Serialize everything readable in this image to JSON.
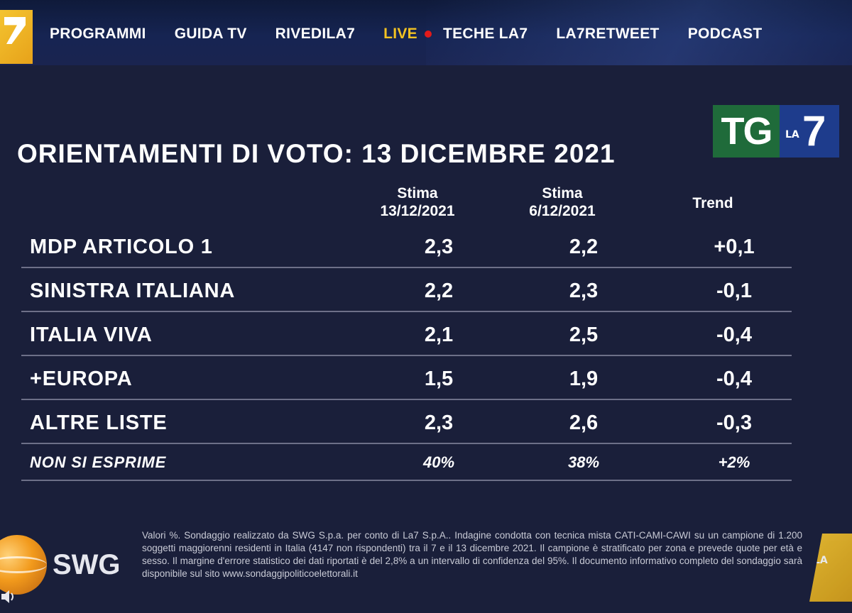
{
  "nav": {
    "items": [
      "PROGRAMMI",
      "GUIDA TV",
      "RIVEDILA7"
    ],
    "live_label": "LIVE",
    "items_after": [
      "TECHE LA7",
      "LA7RETWEET",
      "PODCAST"
    ]
  },
  "logo": {
    "tg": "TG",
    "la": "LA",
    "seven": "7"
  },
  "title": "ORIENTAMENTI DI VOTO: 13 DICEMBRE 2021",
  "table": {
    "columns": [
      {
        "line1": "Stima",
        "line2": "13/12/2021"
      },
      {
        "line1": "Stima",
        "line2": "6/12/2021"
      },
      {
        "line1": "Trend",
        "line2": ""
      }
    ],
    "rows": [
      {
        "name": "MDP ARTICOLO 1",
        "v1": "2,3",
        "v2": "2,2",
        "trend": "+0,1"
      },
      {
        "name": "SINISTRA ITALIANA",
        "v1": "2,2",
        "v2": "2,3",
        "trend": "-0,1"
      },
      {
        "name": "ITALIA VIVA",
        "v1": "2,1",
        "v2": "2,5",
        "trend": "-0,4"
      },
      {
        "name": "+EUROPA",
        "v1": "1,5",
        "v2": "1,9",
        "trend": "-0,4"
      },
      {
        "name": "ALTRE LISTE",
        "v1": "2,3",
        "v2": "2,6",
        "trend": "-0,3"
      }
    ],
    "footer_row": {
      "name": "NON SI ESPRIME",
      "v1": "40%",
      "v2": "38%",
      "trend": "+2%"
    }
  },
  "footer": {
    "note": "Valori %. Sondaggio realizzato da SWG S.p.a. per conto di La7 S.p.A.. Indagine condotta con tecnica mista CATI-CAMI-CAWI su un campione di 1.200 soggetti maggiorenni residenti in Italia (4147 non rispondenti) tra il 7 e il 13 dicembre 2021. Il campione è stratificato per zona e prevede quote per età e sesso. Il margine d'errore statistico dei dati riportati è del 2,8% a un intervallo di confidenza del 95%. Il documento informativo completo del sondaggio sarà disponibile sul sito www.sondaggipoliticoelettorali.it",
    "swg_logo": "SWG",
    "corner_text": "LA"
  },
  "colors": {
    "background": "#1a1f3a",
    "live": "#f3c222",
    "live_dot": "#e21a1a",
    "tg_green": "#1f6b3a",
    "tg_blue": "#1e3c8c",
    "row_divider": "#6d7088"
  }
}
